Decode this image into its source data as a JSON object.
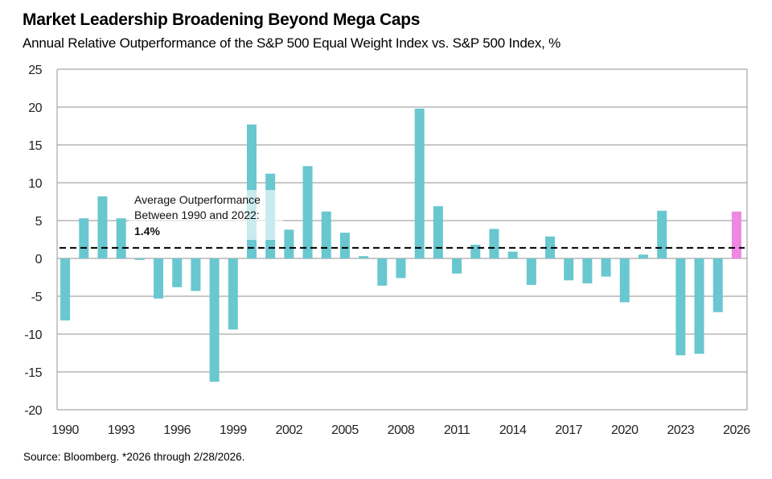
{
  "header": {
    "title": "Market Leadership Broadening Beyond Mega Caps",
    "subtitle": "Annual Relative Outperformance of the S&P 500 Equal Weight Index vs. S&P 500 Index, %"
  },
  "footer": {
    "source": "Source: Bloomberg. *2026 through 2/28/2026."
  },
  "colors": {
    "bar": "#69c7cf",
    "highlight_bar": "#ee88e2",
    "gridline": "#a6a6a6",
    "average_line": "#000000"
  },
  "chart_data": {
    "type": "bar",
    "title": "Market Leadership Broadening Beyond Mega Caps",
    "subtitle": "Annual Relative Outperformance of the S&P 500 Equal Weight Index vs. S&P 500 Index, %",
    "xlabel": "",
    "ylabel": "",
    "ylim": [
      -20,
      25
    ],
    "yticks": [
      25,
      20,
      15,
      10,
      5,
      0,
      -5,
      -10,
      -15,
      -20
    ],
    "ytick_labels": [
      "25",
      "20",
      "15",
      "10",
      "5",
      "0",
      "-5",
      "-10",
      "-15",
      "-20"
    ],
    "grid": true,
    "categories": [
      "1990",
      "1991",
      "1992",
      "1993",
      "1994",
      "1995",
      "1996",
      "1997",
      "1998",
      "1999",
      "2000",
      "2001",
      "2002",
      "2003",
      "2004",
      "2005",
      "2006",
      "2007",
      "2008",
      "2009",
      "2010",
      "2011",
      "2012",
      "2013",
      "2014",
      "2015",
      "2016",
      "2017",
      "2018",
      "2019",
      "2020",
      "2021",
      "2022",
      "2023",
      "2024",
      "2025",
      "2026"
    ],
    "xtick_labels": [
      "1990",
      "1993",
      "1996",
      "1999",
      "2002",
      "2005",
      "2008",
      "2011",
      "2014",
      "2017",
      "2020",
      "2023",
      "2026"
    ],
    "values": [
      -8.2,
      5.3,
      8.2,
      5.3,
      -0.2,
      -5.3,
      -3.8,
      -4.3,
      -16.3,
      -9.4,
      17.7,
      11.2,
      3.8,
      12.2,
      6.2,
      3.4,
      0.3,
      -3.6,
      -2.6,
      19.8,
      6.9,
      -2.0,
      1.8,
      3.9,
      0.9,
      -3.5,
      2.9,
      -2.9,
      -3.3,
      -2.4,
      -5.8,
      0.5,
      6.3,
      -12.8,
      -12.6,
      -7.1,
      6.2
    ],
    "highlight_category": "2026",
    "reference_line": {
      "value": 1.4,
      "style": "dashed",
      "label_lines": [
        "Average Outperformance",
        "Between 1990 and 2022:"
      ],
      "label_value": "1.4%"
    },
    "legend": "none"
  }
}
